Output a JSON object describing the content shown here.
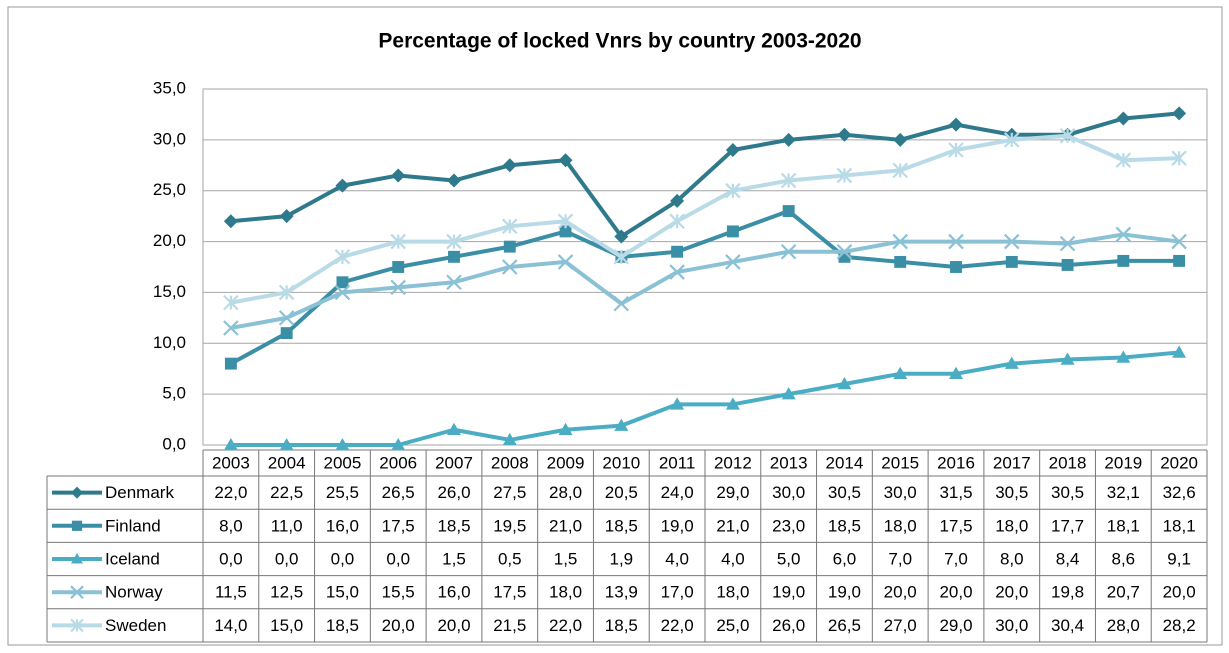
{
  "chart_data": {
    "type": "line",
    "title": "Percentage of locked Vnrs by country 2003-2020",
    "categories": [
      "2003",
      "2004",
      "2005",
      "2006",
      "2007",
      "2008",
      "2009",
      "2010",
      "2011",
      "2012",
      "2013",
      "2014",
      "2015",
      "2016",
      "2017",
      "2018",
      "2019",
      "2020"
    ],
    "ylim": [
      0,
      35
    ],
    "yticks": [
      {
        "value": 0,
        "label": "0,0"
      },
      {
        "value": 5,
        "label": "5,0"
      },
      {
        "value": 10,
        "label": "10,0"
      },
      {
        "value": 15,
        "label": "15,0"
      },
      {
        "value": 20,
        "label": "20,0"
      },
      {
        "value": 25,
        "label": "25,0"
      },
      {
        "value": 30,
        "label": "30,0"
      },
      {
        "value": 35,
        "label": "35,0"
      }
    ],
    "grid": true,
    "series": [
      {
        "name": "Denmark",
        "color": "#2e7a8c",
        "marker": "diamond",
        "values": [
          22.0,
          22.5,
          25.5,
          26.5,
          26.0,
          27.5,
          28.0,
          20.5,
          24.0,
          29.0,
          30.0,
          30.5,
          30.0,
          31.5,
          30.5,
          30.5,
          32.1,
          32.6
        ],
        "value_labels": [
          "22,0",
          "22,5",
          "25,5",
          "26,5",
          "26,0",
          "27,5",
          "28,0",
          "20,5",
          "24,0",
          "29,0",
          "30,0",
          "30,5",
          "30,0",
          "31,5",
          "30,5",
          "30,5",
          "32,1",
          "32,6"
        ]
      },
      {
        "name": "Finland",
        "color": "#3a8ea5",
        "marker": "square",
        "values": [
          8.0,
          11.0,
          16.0,
          17.5,
          18.5,
          19.5,
          21.0,
          18.5,
          19.0,
          21.0,
          23.0,
          18.5,
          18.0,
          17.5,
          18.0,
          17.7,
          18.1,
          18.1
        ],
        "value_labels": [
          "8,0",
          "11,0",
          "16,0",
          "17,5",
          "18,5",
          "19,5",
          "21,0",
          "18,5",
          "19,0",
          "21,0",
          "23,0",
          "18,5",
          "18,0",
          "17,5",
          "18,0",
          "17,7",
          "18,1",
          "18,1"
        ]
      },
      {
        "name": "Iceland",
        "color": "#4badc4",
        "marker": "triangle",
        "values": [
          0.0,
          0.0,
          0.0,
          0.0,
          1.5,
          0.5,
          1.5,
          1.9,
          4.0,
          4.0,
          5.0,
          6.0,
          7.0,
          7.0,
          8.0,
          8.4,
          8.6,
          9.1
        ],
        "value_labels": [
          "0,0",
          "0,0",
          "0,0",
          "0,0",
          "1,5",
          "0,5",
          "1,5",
          "1,9",
          "4,0",
          "4,0",
          "5,0",
          "6,0",
          "7,0",
          "7,0",
          "8,0",
          "8,4",
          "8,6",
          "9,1"
        ]
      },
      {
        "name": "Norway",
        "color": "#8bc1d5",
        "marker": "x",
        "values": [
          11.5,
          12.5,
          15.0,
          15.5,
          16.0,
          17.5,
          18.0,
          13.9,
          17.0,
          18.0,
          19.0,
          19.0,
          20.0,
          20.0,
          20.0,
          19.8,
          20.7,
          20.0
        ],
        "value_labels": [
          "11,5",
          "12,5",
          "15,0",
          "15,5",
          "16,0",
          "17,5",
          "18,0",
          "13,9",
          "17,0",
          "18,0",
          "19,0",
          "19,0",
          "20,0",
          "20,0",
          "20,0",
          "19,8",
          "20,7",
          "20,0"
        ]
      },
      {
        "name": "Sweden",
        "color": "#b9dae7",
        "marker": "star",
        "values": [
          14.0,
          15.0,
          18.5,
          20.0,
          20.0,
          21.5,
          22.0,
          18.5,
          22.0,
          25.0,
          26.0,
          26.5,
          27.0,
          29.0,
          30.0,
          30.4,
          28.0,
          28.2
        ],
        "value_labels": [
          "14,0",
          "15,0",
          "18,5",
          "20,0",
          "20,0",
          "21,5",
          "22,0",
          "18,5",
          "22,0",
          "25,0",
          "26,0",
          "26,5",
          "27,0",
          "29,0",
          "30,0",
          "30,4",
          "28,0",
          "28,2"
        ]
      }
    ]
  }
}
